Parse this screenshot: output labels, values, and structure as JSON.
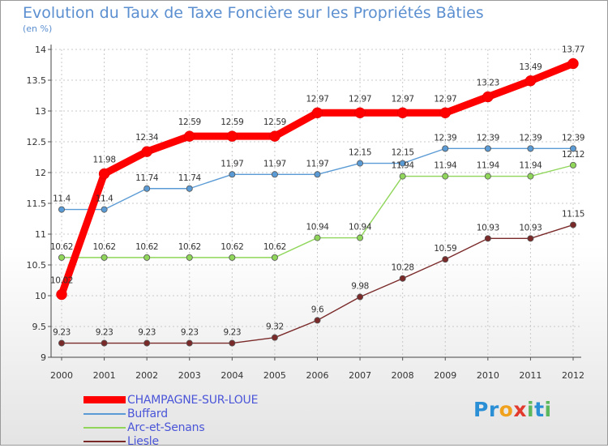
{
  "title": "Evolution du Taux de Taxe Foncière sur les Propriétés Bâties",
  "unit": "(en %)",
  "logo": {
    "letters": [
      "P",
      "r",
      "o",
      "x",
      "i",
      "t",
      "i"
    ],
    "colors": [
      "#2b8fd6",
      "#2b8fd6",
      "#f0a11e",
      "#e23b2e",
      "#5cb85c",
      "#2b8fd6",
      "#5cb85c"
    ]
  },
  "chart_data": {
    "type": "line",
    "x": [
      "2000",
      "2001",
      "2002",
      "2003",
      "2004",
      "2005",
      "2006",
      "2007",
      "2008",
      "2009",
      "2010",
      "2011",
      "2012"
    ],
    "ylim": [
      9,
      14
    ],
    "yticks": [
      "9",
      "9.5",
      "10",
      "10.5",
      "11",
      "11.5",
      "12",
      "12.5",
      "13",
      "13.5",
      "14"
    ],
    "grid": true,
    "legend_position": "bottom-left",
    "series": [
      {
        "name": "CHAMPAGNE-SUR-LOUE",
        "color": "#ff0000",
        "labels": [
          "10.02",
          "11.98",
          "12.34",
          "12.59",
          "12.59",
          "12.59",
          "12.97",
          "12.97",
          "12.97",
          "12.97",
          "13.23",
          "13.49",
          "13.77"
        ],
        "values": [
          10.02,
          11.98,
          12.34,
          12.59,
          12.59,
          12.59,
          12.97,
          12.97,
          12.97,
          12.97,
          13.23,
          13.49,
          13.77
        ]
      },
      {
        "name": "Buffard",
        "color": "#5b9bd5",
        "labels": [
          "11.4",
          "11.4",
          "11.74",
          "11.74",
          "11.97",
          "11.97",
          "11.97",
          "12.15",
          "12.15",
          "12.39",
          "12.39",
          "12.39",
          "12.39"
        ],
        "values": [
          11.4,
          11.4,
          11.74,
          11.74,
          11.97,
          11.97,
          11.97,
          12.15,
          12.15,
          12.39,
          12.39,
          12.39,
          12.39
        ]
      },
      {
        "name": "Arc-et-Senans",
        "color": "#8fd65a",
        "labels": [
          "10.62",
          "10.62",
          "10.62",
          "10.62",
          "10.62",
          "10.62",
          "10.94",
          "10.94",
          "11.94",
          "11.94",
          "11.94",
          "11.94",
          "12.12"
        ],
        "values": [
          10.62,
          10.62,
          10.62,
          10.62,
          10.62,
          10.62,
          10.94,
          10.94,
          11.94,
          11.94,
          11.94,
          11.94,
          12.12
        ]
      },
      {
        "name": "Liesle",
        "color": "#7b2a2a",
        "labels": [
          "9.23",
          "9.23",
          "9.23",
          "9.23",
          "9.23",
          "9.32",
          "9.6",
          "9.98",
          "10.28",
          "10.59",
          "10.93",
          "10.93",
          "11.15"
        ],
        "values": [
          9.23,
          9.23,
          9.23,
          9.23,
          9.23,
          9.32,
          9.6,
          9.98,
          10.28,
          10.59,
          10.93,
          10.93,
          11.15
        ]
      }
    ]
  }
}
